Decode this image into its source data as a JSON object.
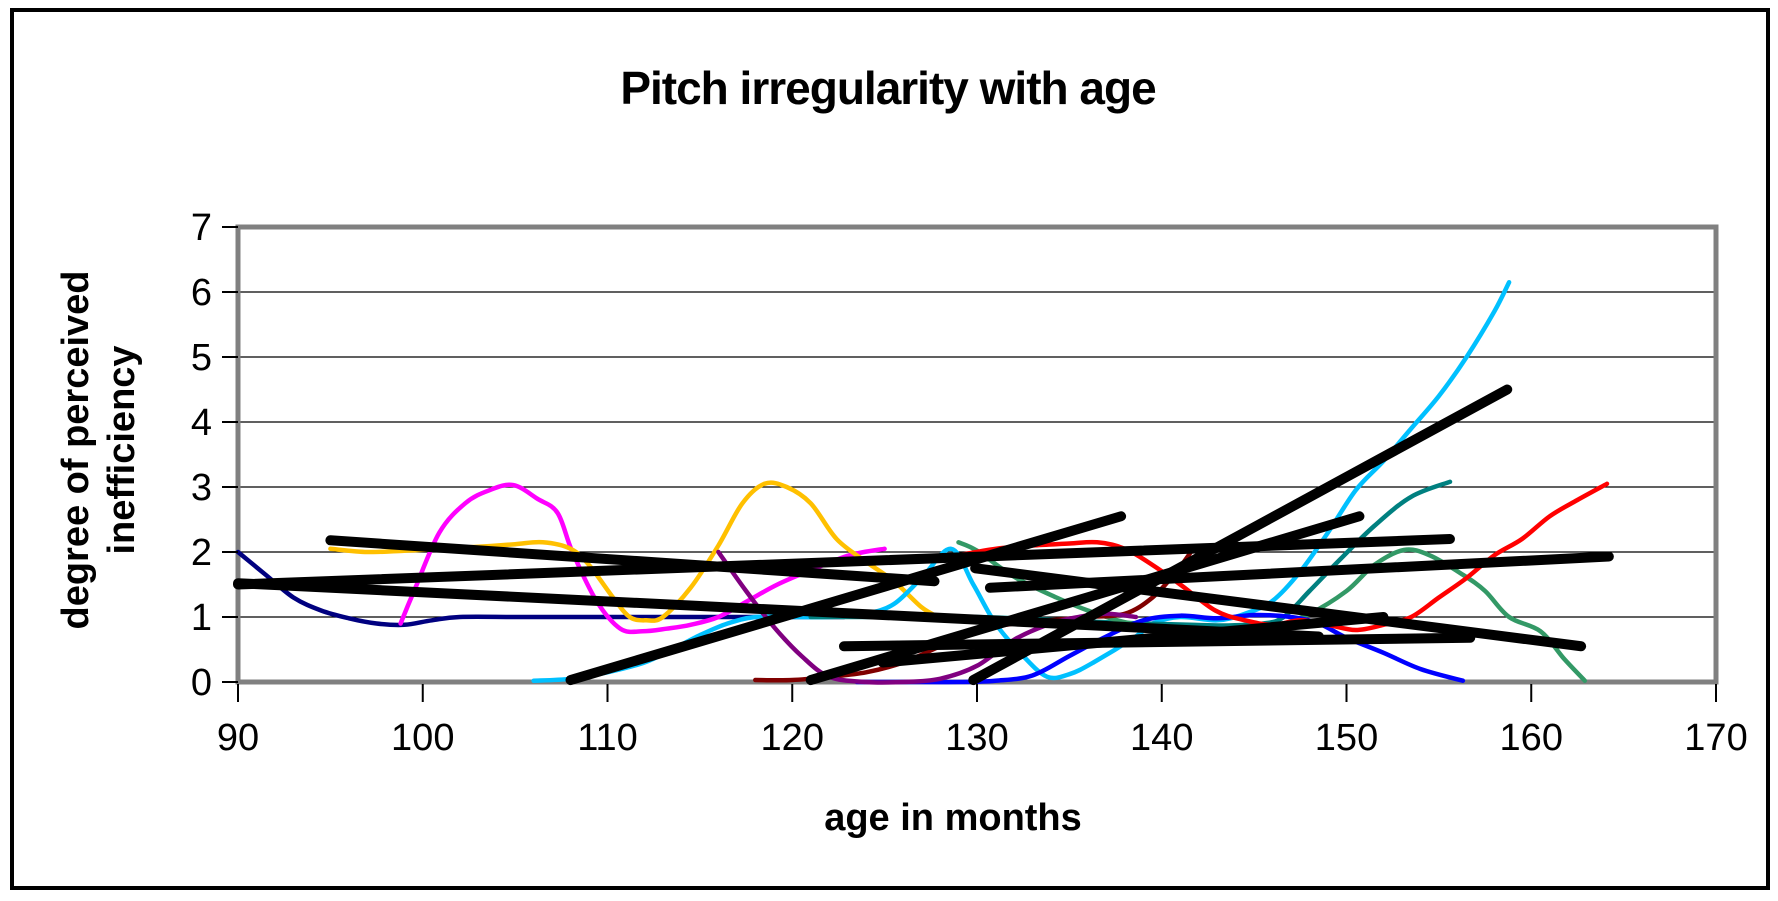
{
  "figure": {
    "title": "Pitch irregularity with age",
    "background_color": "#FFFFFF",
    "border_color": "#000000"
  },
  "axes": {
    "x_label": "age in months",
    "y_label_line1": "degree of perceived",
    "y_label_line2": "inefficiency",
    "x_ticks": [
      90,
      100,
      110,
      120,
      130,
      140,
      150,
      160,
      170
    ],
    "y_ticks": [
      0,
      1,
      2,
      3,
      4,
      5,
      6,
      7
    ],
    "grid_color": "#000000",
    "axis_color": "#808080"
  },
  "chart_data": {
    "type": "line",
    "title": "Pitch irregularity with age",
    "xlabel": "age in months",
    "ylabel": "degree of perceived inefficiency",
    "xlim": [
      90,
      170
    ],
    "ylim": [
      0,
      7
    ],
    "grid": "horizontal",
    "legend_position": "none",
    "series": [
      {
        "name": "navy-line",
        "color": "#000080",
        "points": [
          [
            90,
            2.0
          ],
          [
            91.5,
            1.65
          ],
          [
            93,
            1.3
          ],
          [
            94.5,
            1.1
          ],
          [
            96,
            0.98
          ],
          [
            97.5,
            0.9
          ],
          [
            99,
            0.88
          ],
          [
            100.5,
            0.95
          ],
          [
            102,
            1.0
          ],
          [
            105,
            1.0
          ],
          [
            108,
            1.0
          ],
          [
            111,
            1.0
          ],
          [
            114,
            1.0
          ],
          [
            117,
            1.0
          ],
          [
            120,
            1.0
          ],
          [
            122.8,
            1.0
          ]
        ]
      },
      {
        "name": "magenta-line",
        "color": "#FF00FF",
        "points": [
          [
            98.8,
            0.9
          ],
          [
            99.6,
            1.45
          ],
          [
            100.9,
            2.3
          ],
          [
            102.3,
            2.75
          ],
          [
            103.6,
            2.95
          ],
          [
            104.9,
            3.03
          ],
          [
            106.2,
            2.82
          ],
          [
            107.3,
            2.6
          ],
          [
            108.1,
            2.0
          ],
          [
            109.4,
            1.25
          ],
          [
            110.7,
            0.82
          ],
          [
            111.9,
            0.78
          ],
          [
            113.2,
            0.82
          ],
          [
            114.5,
            0.88
          ],
          [
            116,
            1.0
          ],
          [
            117.6,
            1.25
          ],
          [
            119.2,
            1.5
          ],
          [
            121,
            1.72
          ],
          [
            123.1,
            1.95
          ],
          [
            125,
            2.05
          ]
        ]
      },
      {
        "name": "gold-line",
        "color": "#FFC000",
        "points": [
          [
            95,
            2.05
          ],
          [
            97,
            2.0
          ],
          [
            99,
            2.02
          ],
          [
            101,
            2.05
          ],
          [
            103,
            2.08
          ],
          [
            105,
            2.12
          ],
          [
            106.5,
            2.15
          ],
          [
            108,
            2.05
          ],
          [
            109,
            1.8
          ],
          [
            110.3,
            1.3
          ],
          [
            111.2,
            1.0
          ],
          [
            112.1,
            0.95
          ],
          [
            113,
            1.0
          ],
          [
            114.5,
            1.45
          ],
          [
            116,
            2.1
          ],
          [
            117.3,
            2.75
          ],
          [
            118.5,
            3.05
          ],
          [
            119.7,
            3.0
          ],
          [
            121,
            2.75
          ],
          [
            122.4,
            2.2
          ],
          [
            124,
            1.85
          ],
          [
            125.5,
            1.55
          ],
          [
            127,
            1.15
          ],
          [
            127.9,
            1.0
          ]
        ]
      },
      {
        "name": "cyan-line",
        "color": "#00C0FF",
        "points": [
          [
            106,
            0.02
          ],
          [
            108,
            0.05
          ],
          [
            110,
            0.15
          ],
          [
            112,
            0.3
          ],
          [
            113.5,
            0.5
          ],
          [
            115,
            0.72
          ],
          [
            116.5,
            0.9
          ],
          [
            118,
            1.0
          ],
          [
            120,
            1.0
          ],
          [
            122,
            1.0
          ],
          [
            124,
            1.05
          ],
          [
            125.5,
            1.2
          ],
          [
            127,
            1.6
          ],
          [
            128.6,
            2.05
          ],
          [
            129.8,
            1.5
          ],
          [
            131,
            0.9
          ],
          [
            132.5,
            0.4
          ],
          [
            133.8,
            0.08
          ],
          [
            135,
            0.12
          ],
          [
            136.3,
            0.3
          ],
          [
            138.6,
            0.7
          ],
          [
            139.5,
            0.9
          ],
          [
            141,
            1.0
          ],
          [
            143,
            0.95
          ],
          [
            144.5,
            1.05
          ],
          [
            146,
            1.25
          ],
          [
            147.5,
            1.7
          ],
          [
            149,
            2.3
          ],
          [
            150.5,
            2.95
          ],
          [
            152,
            3.4
          ],
          [
            153.5,
            3.9
          ],
          [
            155,
            4.4
          ],
          [
            156.5,
            5.0
          ],
          [
            158,
            5.7
          ],
          [
            158.8,
            6.15
          ]
        ]
      },
      {
        "name": "teal-line",
        "color": "#008080",
        "points": [
          [
            121,
            1.0
          ],
          [
            124,
            1.0
          ],
          [
            127,
            1.0
          ],
          [
            130,
            1.0
          ],
          [
            133,
            0.97
          ],
          [
            136,
            0.93
          ],
          [
            139,
            0.9
          ],
          [
            141.5,
            0.88
          ],
          [
            143.5,
            0.87
          ],
          [
            145.5,
            0.9
          ],
          [
            146.6,
            1.0
          ],
          [
            148,
            1.4
          ],
          [
            149.7,
            1.9
          ],
          [
            151.5,
            2.4
          ],
          [
            153.5,
            2.85
          ],
          [
            155.6,
            3.08
          ]
        ]
      },
      {
        "name": "sea-green-line",
        "color": "#339966",
        "points": [
          [
            129,
            2.15
          ],
          [
            130,
            2.02
          ],
          [
            132,
            1.62
          ],
          [
            134.3,
            1.3
          ],
          [
            136,
            1.1
          ],
          [
            138,
            0.92
          ],
          [
            140,
            0.85
          ],
          [
            142,
            0.8
          ],
          [
            144,
            0.78
          ],
          [
            146,
            0.85
          ],
          [
            148,
            1.05
          ],
          [
            150,
            1.4
          ],
          [
            151.5,
            1.8
          ],
          [
            153.1,
            2.03
          ],
          [
            154.5,
            1.95
          ],
          [
            156.3,
            1.65
          ],
          [
            157.5,
            1.4
          ],
          [
            158.8,
            1.0
          ],
          [
            160.5,
            0.78
          ],
          [
            161.8,
            0.35
          ],
          [
            162.9,
            0.02
          ]
        ]
      },
      {
        "name": "blue-line",
        "color": "#0000FF",
        "points": [
          [
            123.5,
            0.0
          ],
          [
            126,
            0.0
          ],
          [
            129,
            0.0
          ],
          [
            131,
            0.02
          ],
          [
            133,
            0.1
          ],
          [
            135,
            0.4
          ],
          [
            137,
            0.7
          ],
          [
            139,
            0.95
          ],
          [
            141,
            1.02
          ],
          [
            143,
            0.98
          ],
          [
            145,
            1.03
          ],
          [
            147,
            1.0
          ],
          [
            148.5,
            0.9
          ],
          [
            150,
            0.68
          ],
          [
            152,
            0.45
          ],
          [
            154,
            0.2
          ],
          [
            156.3,
            0.02
          ]
        ]
      },
      {
        "name": "red-line",
        "color": "#FF0000",
        "points": [
          [
            129,
            1.95
          ],
          [
            131,
            2.05
          ],
          [
            133,
            2.1
          ],
          [
            135,
            2.13
          ],
          [
            136.5,
            2.15
          ],
          [
            138,
            2.05
          ],
          [
            139.5,
            1.8
          ],
          [
            141,
            1.5
          ],
          [
            142.9,
            1.1
          ],
          [
            144.5,
            0.95
          ],
          [
            146,
            0.88
          ],
          [
            147.5,
            0.95
          ],
          [
            149,
            0.88
          ],
          [
            150.5,
            0.8
          ],
          [
            152,
            0.88
          ],
          [
            153.5,
            1.0
          ],
          [
            155,
            1.3
          ],
          [
            156.5,
            1.6
          ],
          [
            158,
            1.95
          ],
          [
            159.5,
            2.2
          ],
          [
            161,
            2.55
          ],
          [
            162.5,
            2.8
          ],
          [
            164.1,
            3.05
          ]
        ]
      },
      {
        "name": "dark-red-line",
        "color": "#800000",
        "points": [
          [
            118,
            0.03
          ],
          [
            120,
            0.03
          ],
          [
            122,
            0.08
          ],
          [
            124,
            0.15
          ],
          [
            126,
            0.3
          ],
          [
            128,
            0.55
          ],
          [
            130,
            0.78
          ],
          [
            132,
            0.9
          ],
          [
            134,
            0.95
          ],
          [
            136,
            1.0
          ],
          [
            138,
            1.05
          ],
          [
            139.5,
            1.3
          ],
          [
            140.8,
            1.7
          ],
          [
            141.7,
            2.05
          ]
        ]
      },
      {
        "name": "purple-line",
        "color": "#800080",
        "points": [
          [
            116,
            2.0
          ],
          [
            117.5,
            1.4
          ],
          [
            119,
            0.85
          ],
          [
            120.5,
            0.4
          ],
          [
            122,
            0.08
          ],
          [
            124,
            0.0
          ],
          [
            126,
            0.0
          ],
          [
            128,
            0.05
          ],
          [
            130,
            0.25
          ],
          [
            132,
            0.65
          ],
          [
            134,
            0.9
          ],
          [
            135.5,
            1.0
          ],
          [
            137,
            1.05
          ],
          [
            138.6,
            1.0
          ]
        ]
      }
    ],
    "trendlines": [
      {
        "name": "trendline-1",
        "color": "#000000",
        "from": [
          95,
          2.18
        ],
        "to": [
          127.7,
          1.55
        ]
      },
      {
        "name": "trendline-2",
        "color": "#000000",
        "from": [
          90,
          1.5
        ],
        "to": [
          155.6,
          2.2
        ]
      },
      {
        "name": "trendline-3",
        "color": "#000000",
        "from": [
          90,
          1.52
        ],
        "to": [
          148.5,
          0.7
        ]
      },
      {
        "name": "trendline-4",
        "color": "#000000",
        "from": [
          108,
          0.03
        ],
        "to": [
          137.8,
          2.55
        ]
      },
      {
        "name": "trendline-5",
        "color": "#000000",
        "from": [
          121,
          0.03
        ],
        "to": [
          150.7,
          2.55
        ]
      },
      {
        "name": "trendline-6",
        "color": "#000000",
        "from": [
          129.8,
          0.03
        ],
        "to": [
          158.7,
          4.5
        ]
      },
      {
        "name": "trendline-7",
        "color": "#000000",
        "from": [
          122.8,
          0.55
        ],
        "to": [
          156.7,
          0.68
        ]
      },
      {
        "name": "trendline-8",
        "color": "#000000",
        "from": [
          124.9,
          0.3
        ],
        "to": [
          152,
          1.0
        ]
      },
      {
        "name": "trendline-9",
        "color": "#000000",
        "from": [
          130.7,
          1.45
        ],
        "to": [
          164.2,
          1.93
        ]
      },
      {
        "name": "trendline-10",
        "color": "#000000",
        "from": [
          129.9,
          1.75
        ],
        "to": [
          162.7,
          0.55
        ]
      }
    ]
  }
}
